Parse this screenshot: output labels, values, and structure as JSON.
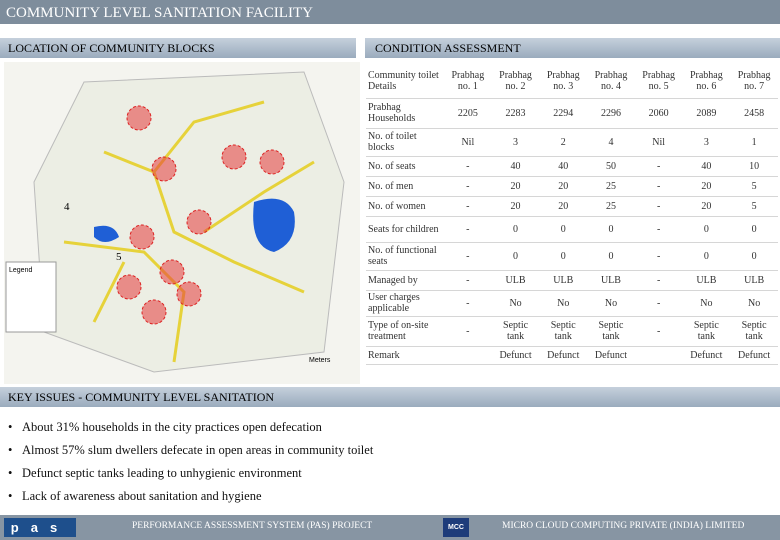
{
  "header": {
    "title": "COMMUNITY LEVEL SANITATION FACILITY"
  },
  "left_section": {
    "title": "LOCATION OF COMMUNITY BLOCKS",
    "map": {
      "legend": "Legend",
      "labels": [
        "4",
        "5"
      ],
      "scale": "Meters"
    }
  },
  "right_section": {
    "title": "CONDITION ASSESSMENT",
    "table": {
      "header": [
        "Community toilet Details",
        "Prabhag no. 1",
        "Prabhag no. 2",
        "Prabhag no. 3",
        "Prabhag no. 4",
        "Prabhag no. 5",
        "Prabhag no. 6",
        "Prabhag no. 7"
      ],
      "rows": [
        [
          "Prabhag Households",
          2205,
          2283,
          2294,
          2296,
          2060,
          2089,
          2458
        ],
        [
          "No. of toilet blocks",
          "Nil",
          3,
          2,
          4,
          "Nil",
          3,
          1
        ],
        [
          "No. of seats",
          "-",
          40,
          40,
          50,
          "-",
          40,
          10
        ],
        [
          "No. of men",
          "-",
          20,
          20,
          25,
          "-",
          20,
          5
        ],
        [
          "No. of women",
          "-",
          20,
          20,
          25,
          "-",
          20,
          5
        ],
        [
          "Seats for children",
          "-",
          0,
          0,
          0,
          "-",
          0,
          0
        ],
        [
          "No. of functional seats",
          "-",
          0,
          0,
          0,
          "-",
          0,
          0
        ],
        [
          "Managed by",
          "-",
          "ULB",
          "ULB",
          "ULB",
          "-",
          "ULB",
          "ULB"
        ],
        [
          "User charges applicable",
          "-",
          "No",
          "No",
          "No",
          "-",
          "No",
          "No"
        ],
        [
          "Type of on-site treatment",
          "-",
          "Septic tank",
          "Septic tank",
          "Septic tank",
          "-",
          "Septic tank",
          "Septic tank"
        ],
        [
          "Remark",
          null,
          "Defunct",
          "Defunct",
          "Defunct",
          null,
          "Defunct",
          "Defunct"
        ]
      ]
    }
  },
  "key_issues": {
    "title": "KEY ISSUES - COMMUNITY LEVEL SANITATION",
    "items": [
      "About 31% households in the city practices open defecation",
      "Almost 57% slum dwellers defecate in open areas in community toilet",
      "Defunct septic tanks leading to unhygienic environment",
      "Lack of awareness about sanitation and hygiene"
    ]
  },
  "footer": {
    "logo": "pas",
    "center": "PERFORMANCE ASSESSMENT SYSTEM (PAS) PROJECT",
    "mcc": "MCC",
    "right": "MICRO CLOUD COMPUTING PRIVATE (INDIA) LIMITED"
  }
}
